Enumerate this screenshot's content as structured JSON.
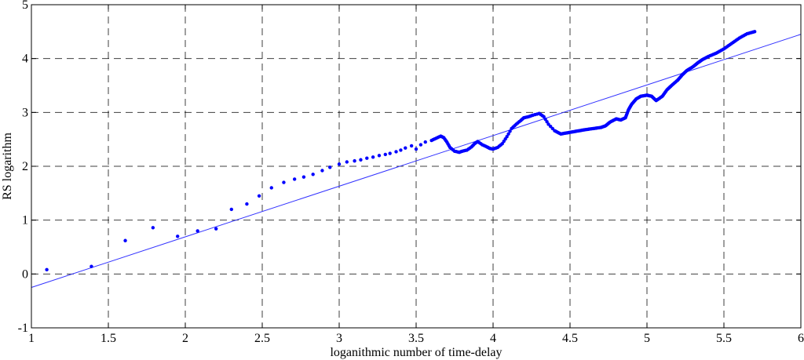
{
  "chart_data": {
    "type": "scatter",
    "xlabel": "loganithmic number of time-delay",
    "ylabel": "RS logarithm",
    "xlim": [
      1,
      6
    ],
    "ylim": [
      -1,
      5
    ],
    "x_ticks": [
      1,
      1.5,
      2,
      2.5,
      3,
      3.5,
      4,
      4.5,
      5,
      5.5,
      6
    ],
    "y_ticks": [
      -1,
      0,
      1,
      2,
      3,
      4,
      5
    ],
    "x_tick_labels": [
      "1",
      "1.5",
      "2",
      "2.5",
      "3",
      "3.5",
      "4",
      "4.5",
      "5",
      "5.5",
      "6"
    ],
    "y_tick_labels": [
      "-1",
      "0",
      "1",
      "2",
      "3",
      "4",
      "5"
    ],
    "grid": true,
    "colors": {
      "points": "#0000ff",
      "fit_line": "#3333ff"
    },
    "fit_line": {
      "x": [
        1,
        6
      ],
      "y": [
        -0.25,
        4.45
      ]
    },
    "series_anchors": {
      "x": [
        1.1,
        1.39,
        1.61,
        1.79,
        1.95,
        2.08,
        2.2,
        2.3,
        2.4,
        2.48,
        2.56,
        2.64,
        2.71,
        2.77,
        2.83,
        2.89,
        2.94,
        3.0,
        3.05,
        3.1,
        3.14,
        3.18,
        3.22,
        3.26,
        3.3,
        3.33,
        3.37,
        3.4,
        3.43,
        3.47,
        3.5,
        3.53,
        3.56,
        3.6,
        3.63,
        3.66,
        3.68,
        3.7,
        3.72,
        3.75,
        3.78,
        3.8,
        3.83,
        3.86,
        3.88,
        3.9,
        3.93,
        3.96,
        3.98,
        4.0,
        4.03,
        4.06,
        4.09,
        4.12,
        4.15,
        4.18,
        4.2,
        4.23,
        4.26,
        4.3,
        4.33,
        4.36,
        4.4,
        4.44,
        4.48,
        4.52,
        4.56,
        4.6,
        4.65,
        4.7,
        4.73,
        4.76,
        4.8,
        4.83,
        4.86,
        4.88,
        4.9,
        4.93,
        4.96,
        5.0,
        5.03,
        5.06,
        5.1,
        5.13,
        5.16,
        5.2,
        5.23,
        5.26,
        5.3,
        5.33,
        5.36,
        5.4,
        5.45,
        5.5,
        5.55,
        5.6,
        5.65,
        5.7
      ],
      "y": [
        0.08,
        0.14,
        0.62,
        0.86,
        0.7,
        0.8,
        0.84,
        1.2,
        1.3,
        1.45,
        1.6,
        1.7,
        1.76,
        1.8,
        1.85,
        1.92,
        1.98,
        2.04,
        2.08,
        2.1,
        2.12,
        2.15,
        2.17,
        2.2,
        2.22,
        2.24,
        2.27,
        2.3,
        2.34,
        2.38,
        2.32,
        2.4,
        2.45,
        2.48,
        2.52,
        2.56,
        2.53,
        2.45,
        2.35,
        2.28,
        2.26,
        2.28,
        2.3,
        2.36,
        2.42,
        2.46,
        2.4,
        2.36,
        2.33,
        2.32,
        2.35,
        2.42,
        2.55,
        2.7,
        2.78,
        2.85,
        2.9,
        2.92,
        2.95,
        2.98,
        2.92,
        2.78,
        2.66,
        2.6,
        2.62,
        2.64,
        2.66,
        2.68,
        2.7,
        2.72,
        2.75,
        2.82,
        2.88,
        2.86,
        2.9,
        3.05,
        3.15,
        3.25,
        3.3,
        3.32,
        3.3,
        3.22,
        3.3,
        3.42,
        3.5,
        3.6,
        3.7,
        3.78,
        3.85,
        3.92,
        3.98,
        4.04,
        4.1,
        4.18,
        4.28,
        4.38,
        4.46,
        4.5
      ]
    }
  }
}
